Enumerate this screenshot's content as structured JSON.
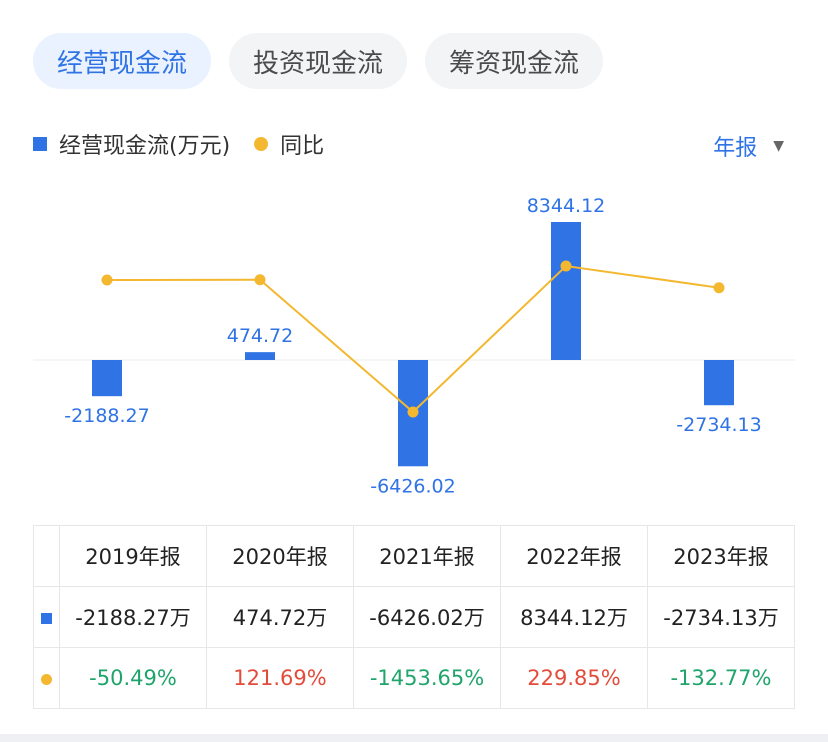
{
  "tabs": [
    {
      "label": "经营现金流",
      "active": true
    },
    {
      "label": "投资现金流",
      "active": false
    },
    {
      "label": "筹资现金流",
      "active": false
    }
  ],
  "legend": {
    "bar_label": "经营现金流(万元)",
    "line_label": "同比"
  },
  "period_selector": {
    "label": "年报",
    "caret": "▼"
  },
  "colors": {
    "bar": "#2f73e5",
    "line": "#f3b82f",
    "positive": "#e34c3b",
    "negative": "#1fa56b"
  },
  "chart_data": {
    "type": "bar",
    "categories": [
      "2019年报",
      "2020年报",
      "2021年报",
      "2022年报",
      "2023年报"
    ],
    "series": [
      {
        "name": "经营现金流(万元)",
        "type": "bar",
        "values": [
          -2188.27,
          474.72,
          -6426.02,
          8344.12,
          -2734.13
        ],
        "labels": [
          "-2188.27",
          "474.72",
          "-6426.02",
          "8344.12",
          "-2734.13"
        ]
      },
      {
        "name": "同比",
        "type": "line",
        "values": [
          -50.49,
          121.69,
          -1453.65,
          229.85,
          -132.77
        ]
      }
    ],
    "grid": false,
    "legend": "top-left"
  },
  "table": {
    "headers": [
      "2019年报",
      "2020年报",
      "2021年报",
      "2022年报",
      "2023年报"
    ],
    "values_row": [
      "-2188.27万",
      "474.72万",
      "-6426.02万",
      "8344.12万",
      "-2734.13万"
    ],
    "yoy_row": [
      "-50.49%",
      "121.69%",
      "-1453.65%",
      "229.85%",
      "-132.77%"
    ]
  }
}
